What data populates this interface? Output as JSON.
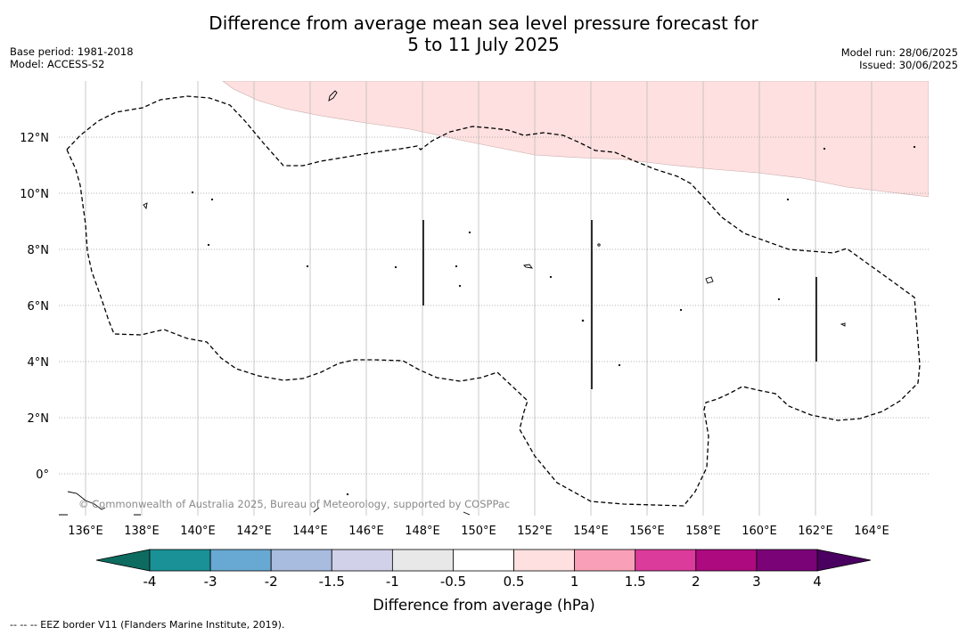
{
  "title": {
    "line1": "Difference from average mean sea level pressure forecast for",
    "line2": "5 to 11 July 2025"
  },
  "meta_left": [
    "Base period: 1981-2018",
    "Model: ACCESS-S2"
  ],
  "meta_right": [
    "Model run: 28/06/2025",
    "Issued: 30/06/2025"
  ],
  "map": {
    "lon_range": [
      135,
      166
    ],
    "lat_range": [
      -1.5,
      14
    ],
    "lon_ticks": [
      "136°E",
      "138°E",
      "140°E",
      "142°E",
      "144°E",
      "146°E",
      "148°E",
      "150°E",
      "152°E",
      "154°E",
      "156°E",
      "158°E",
      "160°E",
      "162°E",
      "164°E"
    ],
    "lat_ticks": [
      "12°N",
      "10°N",
      "8°N",
      "6°N",
      "4°N",
      "2°N",
      "0°"
    ],
    "anomaly_region_color": "#fde0df",
    "anomaly_region_label": "0.5 to 1",
    "copyright": "© Commonwealth of Australia 2025, Bureau of Meteorology, supported by COSPPac"
  },
  "colorbar": {
    "label": "Difference from average (hPa)",
    "tick_labels": [
      "-4",
      "-3",
      "-2",
      "-1.5",
      "-1",
      "-0.5",
      "0.5",
      "1",
      "1.5",
      "2",
      "3",
      "4"
    ],
    "colors": [
      "#1a9196",
      "#67a9d2",
      "#a8bcdf",
      "#d1d1e9",
      "#e8e8e8",
      "#ffffff",
      "#fde0df",
      "#f9a0b8",
      "#db3b9b",
      "#ad0a80",
      "#7b0378"
    ],
    "under_color": "#0d6b60",
    "over_color": "#4a0060"
  },
  "footnote": "--  --  -- EEZ border V11 (Flanders Marine Institute, 2019)."
}
